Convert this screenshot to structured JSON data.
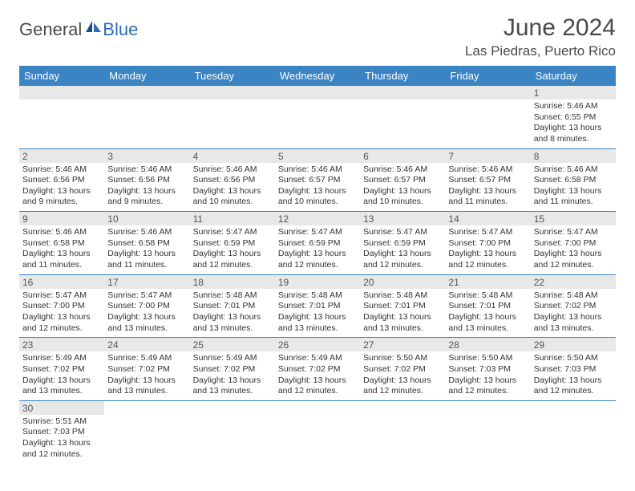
{
  "logo": {
    "text_general": "General",
    "text_blue": "Blue"
  },
  "title": "June 2024",
  "location": "Las Piedras, Puerto Rico",
  "colors": {
    "header_bg": "#3b84c4",
    "header_text": "#ffffff",
    "daybar_bg": "#e8e8e8",
    "daybar_text": "#555555",
    "body_text": "#333333",
    "row_divider": "#3b84c4",
    "title_text": "#4a4a4a",
    "logo_blue": "#2a6db8"
  },
  "weekdays": [
    "Sunday",
    "Monday",
    "Tuesday",
    "Wednesday",
    "Thursday",
    "Friday",
    "Saturday"
  ],
  "weeks": [
    [
      null,
      null,
      null,
      null,
      null,
      null,
      {
        "n": "1",
        "sunrise": "5:46 AM",
        "sunset": "6:55 PM",
        "daylight": "13 hours and 8 minutes."
      }
    ],
    [
      {
        "n": "2",
        "sunrise": "5:46 AM",
        "sunset": "6:56 PM",
        "daylight": "13 hours and 9 minutes."
      },
      {
        "n": "3",
        "sunrise": "5:46 AM",
        "sunset": "6:56 PM",
        "daylight": "13 hours and 9 minutes."
      },
      {
        "n": "4",
        "sunrise": "5:46 AM",
        "sunset": "6:56 PM",
        "daylight": "13 hours and 10 minutes."
      },
      {
        "n": "5",
        "sunrise": "5:46 AM",
        "sunset": "6:57 PM",
        "daylight": "13 hours and 10 minutes."
      },
      {
        "n": "6",
        "sunrise": "5:46 AM",
        "sunset": "6:57 PM",
        "daylight": "13 hours and 10 minutes."
      },
      {
        "n": "7",
        "sunrise": "5:46 AM",
        "sunset": "6:57 PM",
        "daylight": "13 hours and 11 minutes."
      },
      {
        "n": "8",
        "sunrise": "5:46 AM",
        "sunset": "6:58 PM",
        "daylight": "13 hours and 11 minutes."
      }
    ],
    [
      {
        "n": "9",
        "sunrise": "5:46 AM",
        "sunset": "6:58 PM",
        "daylight": "13 hours and 11 minutes."
      },
      {
        "n": "10",
        "sunrise": "5:46 AM",
        "sunset": "6:58 PM",
        "daylight": "13 hours and 11 minutes."
      },
      {
        "n": "11",
        "sunrise": "5:47 AM",
        "sunset": "6:59 PM",
        "daylight": "13 hours and 12 minutes."
      },
      {
        "n": "12",
        "sunrise": "5:47 AM",
        "sunset": "6:59 PM",
        "daylight": "13 hours and 12 minutes."
      },
      {
        "n": "13",
        "sunrise": "5:47 AM",
        "sunset": "6:59 PM",
        "daylight": "13 hours and 12 minutes."
      },
      {
        "n": "14",
        "sunrise": "5:47 AM",
        "sunset": "7:00 PM",
        "daylight": "13 hours and 12 minutes."
      },
      {
        "n": "15",
        "sunrise": "5:47 AM",
        "sunset": "7:00 PM",
        "daylight": "13 hours and 12 minutes."
      }
    ],
    [
      {
        "n": "16",
        "sunrise": "5:47 AM",
        "sunset": "7:00 PM",
        "daylight": "13 hours and 12 minutes."
      },
      {
        "n": "17",
        "sunrise": "5:47 AM",
        "sunset": "7:00 PM",
        "daylight": "13 hours and 13 minutes."
      },
      {
        "n": "18",
        "sunrise": "5:48 AM",
        "sunset": "7:01 PM",
        "daylight": "13 hours and 13 minutes."
      },
      {
        "n": "19",
        "sunrise": "5:48 AM",
        "sunset": "7:01 PM",
        "daylight": "13 hours and 13 minutes."
      },
      {
        "n": "20",
        "sunrise": "5:48 AM",
        "sunset": "7:01 PM",
        "daylight": "13 hours and 13 minutes."
      },
      {
        "n": "21",
        "sunrise": "5:48 AM",
        "sunset": "7:01 PM",
        "daylight": "13 hours and 13 minutes."
      },
      {
        "n": "22",
        "sunrise": "5:48 AM",
        "sunset": "7:02 PM",
        "daylight": "13 hours and 13 minutes."
      }
    ],
    [
      {
        "n": "23",
        "sunrise": "5:49 AM",
        "sunset": "7:02 PM",
        "daylight": "13 hours and 13 minutes."
      },
      {
        "n": "24",
        "sunrise": "5:49 AM",
        "sunset": "7:02 PM",
        "daylight": "13 hours and 13 minutes."
      },
      {
        "n": "25",
        "sunrise": "5:49 AM",
        "sunset": "7:02 PM",
        "daylight": "13 hours and 13 minutes."
      },
      {
        "n": "26",
        "sunrise": "5:49 AM",
        "sunset": "7:02 PM",
        "daylight": "13 hours and 12 minutes."
      },
      {
        "n": "27",
        "sunrise": "5:50 AM",
        "sunset": "7:02 PM",
        "daylight": "13 hours and 12 minutes."
      },
      {
        "n": "28",
        "sunrise": "5:50 AM",
        "sunset": "7:03 PM",
        "daylight": "13 hours and 12 minutes."
      },
      {
        "n": "29",
        "sunrise": "5:50 AM",
        "sunset": "7:03 PM",
        "daylight": "13 hours and 12 minutes."
      }
    ],
    [
      {
        "n": "30",
        "sunrise": "5:51 AM",
        "sunset": "7:03 PM",
        "daylight": "13 hours and 12 minutes."
      },
      null,
      null,
      null,
      null,
      null,
      null
    ]
  ],
  "labels": {
    "sunrise_prefix": "Sunrise: ",
    "sunset_prefix": "Sunset: ",
    "daylight_prefix": "Daylight: "
  }
}
